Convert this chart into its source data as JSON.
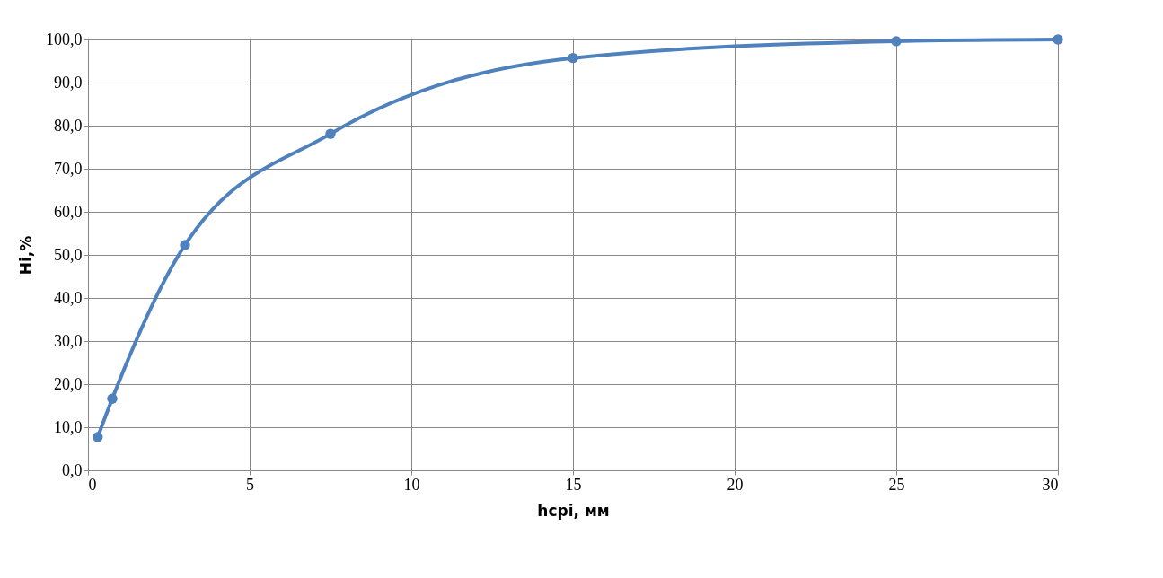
{
  "chart_data": {
    "type": "line",
    "xlabel": "hcpi, мм",
    "ylabel": "Hi,%",
    "x": [
      0.3,
      0.75,
      3,
      7.5,
      15,
      25,
      30
    ],
    "series": [
      {
        "color": "#4f81bd",
        "values": [
          7.7,
          16.6,
          52.3,
          78.1,
          95.7,
          99.6,
          100.0
        ]
      }
    ],
    "xlim": [
      0,
      30
    ],
    "xticks": [
      0,
      5,
      10,
      15,
      20,
      25,
      30
    ],
    "ylim": [
      0,
      100
    ],
    "yticks": [
      {
        "value": 0,
        "label": "0,0"
      },
      {
        "value": 10,
        "label": "10,0"
      },
      {
        "value": 20,
        "label": "20,0"
      },
      {
        "value": 30,
        "label": "30,0"
      },
      {
        "value": 40,
        "label": "40,0"
      },
      {
        "value": 50,
        "label": "50,0"
      },
      {
        "value": 60,
        "label": "60,0"
      },
      {
        "value": 70,
        "label": "70,0"
      },
      {
        "value": 80,
        "label": "80,0"
      },
      {
        "value": 90,
        "label": "90,0"
      },
      {
        "value": 100,
        "label": "100,0"
      }
    ],
    "grid": true,
    "marker": "circle",
    "line_style": "solid"
  }
}
